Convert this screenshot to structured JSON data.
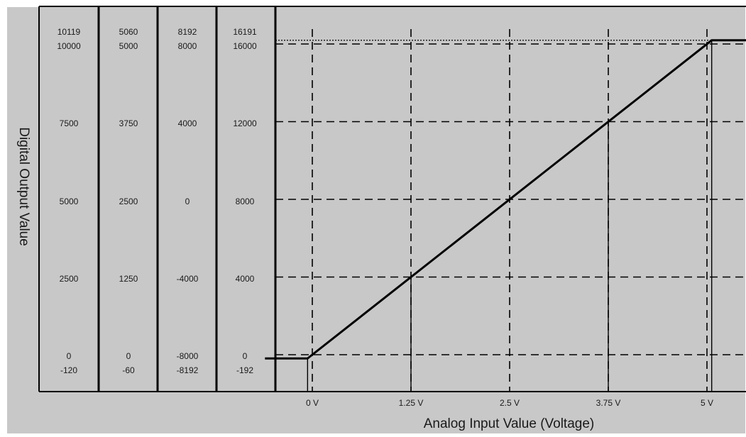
{
  "chart_data": {
    "type": "line",
    "title": "",
    "xlabel": "Analog Input Value (Voltage)",
    "ylabel": "Digital Output Value",
    "colors": {
      "background": "#c8c8c8",
      "line": "#000000"
    },
    "x_ticks": [
      "0 V",
      "1.25 V",
      "2.5 V",
      "3.75 V",
      "5 V"
    ],
    "x_tick_values": [
      0,
      1.25,
      2.5,
      3.75,
      5
    ],
    "y_grid_values": [
      0,
      4000,
      8000,
      12000,
      16000
    ],
    "y_top_dotted_value": 16191,
    "xlim": [
      -0.6,
      5.8
    ],
    "ylim": [
      -192,
      16191
    ],
    "series": [
      {
        "values": [
          {
            "x": -0.6,
            "y": -192
          },
          {
            "x": -0.06,
            "y": -192
          },
          {
            "x": 5.06,
            "y": 16191
          },
          {
            "x": 5.8,
            "y": 16191
          }
        ]
      }
    ],
    "drop_lines_x": [
      -0.06,
      1.25,
      3.75,
      5.06
    ],
    "scale_columns": [
      {
        "labels": [
          "10119",
          "10000",
          "7500",
          "5000",
          "2500",
          "0",
          "-120"
        ]
      },
      {
        "labels": [
          "5060",
          "5000",
          "3750",
          "2500",
          "1250",
          "0",
          "-60"
        ]
      },
      {
        "labels": [
          "8192",
          "8000",
          "4000",
          "0",
          "-4000",
          "-8000",
          "-8192"
        ]
      },
      {
        "labels": [
          "16191",
          "16000",
          "12000",
          "8000",
          "4000",
          "0",
          "-192"
        ]
      }
    ]
  }
}
